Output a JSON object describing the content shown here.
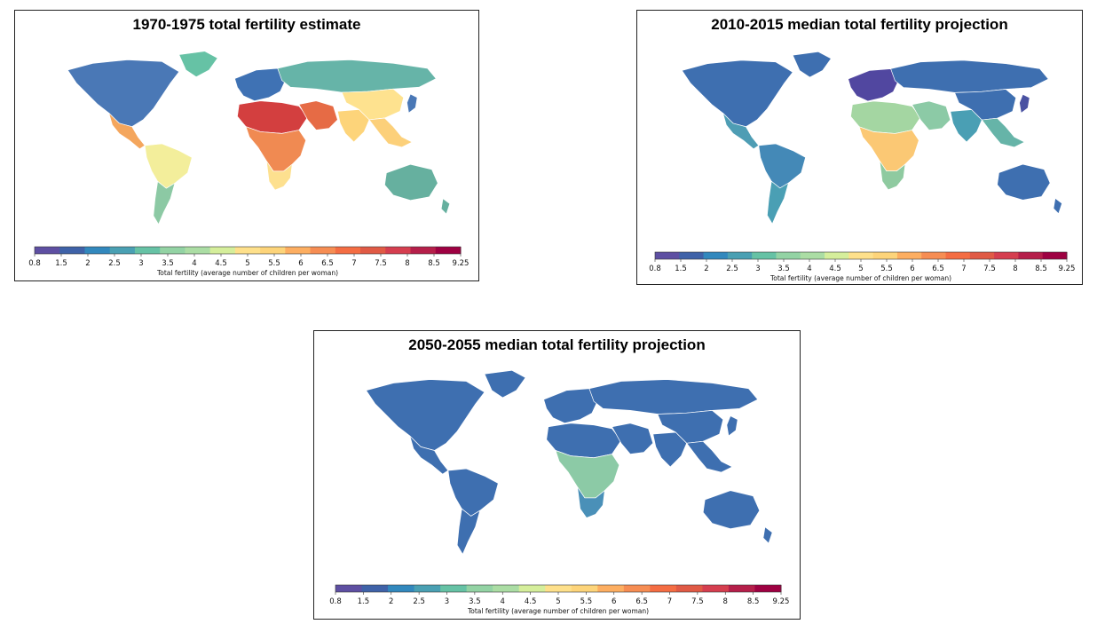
{
  "legend": {
    "ticks": [
      "0.8",
      "1.5",
      "2",
      "2.5",
      "3",
      "3.5",
      "4",
      "4.5",
      "5",
      "5.5",
      "6",
      "6.5",
      "7",
      "7.5",
      "8",
      "8.5",
      "9.25"
    ],
    "title": "Total fertility (average number of children per woman)",
    "colors": [
      "#5e4fa2",
      "#3f62a8",
      "#3288bd",
      "#4aa0b3",
      "#66c2a5",
      "#93d3a4",
      "#abdda4",
      "#d5ee9b",
      "#fee08b",
      "#fdd47a",
      "#fdae61",
      "#f68d53",
      "#f46d43",
      "#e05a45",
      "#d53e4f",
      "#b51f4a",
      "#9e0142"
    ]
  },
  "panels": [
    {
      "title": "1970-1975 total fertility estimate",
      "regions": {
        "north_america": "#4a78b6",
        "greenland": "#66c2a5",
        "central_america": "#f4a65d",
        "south_america": "#f3ee9b",
        "southern_cone": "#8cc9a4",
        "europe": "#3f72b4",
        "russia": "#66b4a8",
        "north_africa": "#d33f3f",
        "middle_east": "#e66b45",
        "africa": "#f08a52",
        "south_africa": "#fde08f",
        "south_asia": "#fdd47a",
        "china": "#fee28f",
        "se_asia": "#fcd07a",
        "japan": "#4a78b6",
        "australia": "#66b09f",
        "nz": "#66b09f"
      }
    },
    {
      "title": "2010-2015 median total fertility projection",
      "regions": {
        "north_america": "#3e6fb0",
        "greenland": "#3e6fb0",
        "central_america": "#4e9db4",
        "south_america": "#4489b7",
        "southern_cone": "#4a9fb4",
        "europe": "#5147a0",
        "russia": "#3e6fb0",
        "north_africa": "#a4d6a2",
        "middle_east": "#8ccaa6",
        "africa": "#fbc874",
        "south_africa": "#8fcaa0",
        "south_asia": "#4a9fb4",
        "china": "#3e6fb0",
        "se_asia": "#66b4a8",
        "japan": "#4a52a2",
        "australia": "#3e6fb0",
        "nz": "#3e6fb0"
      }
    },
    {
      "title": "2050-2055 median total fertility projection",
      "regions": {
        "north_america": "#3e6fb0",
        "greenland": "#3e6fb0",
        "central_america": "#3e6fb0",
        "south_america": "#3e6fb0",
        "southern_cone": "#3e6fb0",
        "europe": "#3e6fb0",
        "russia": "#3e6fb0",
        "north_africa": "#3e6fb0",
        "middle_east": "#3e6fb0",
        "africa": "#8ccaa6",
        "south_africa": "#4a90b8",
        "south_asia": "#3e6fb0",
        "china": "#3e6fb0",
        "se_asia": "#3e6fb0",
        "japan": "#3e6fb0",
        "australia": "#3e6fb0",
        "nz": "#3e6fb0"
      }
    }
  ]
}
